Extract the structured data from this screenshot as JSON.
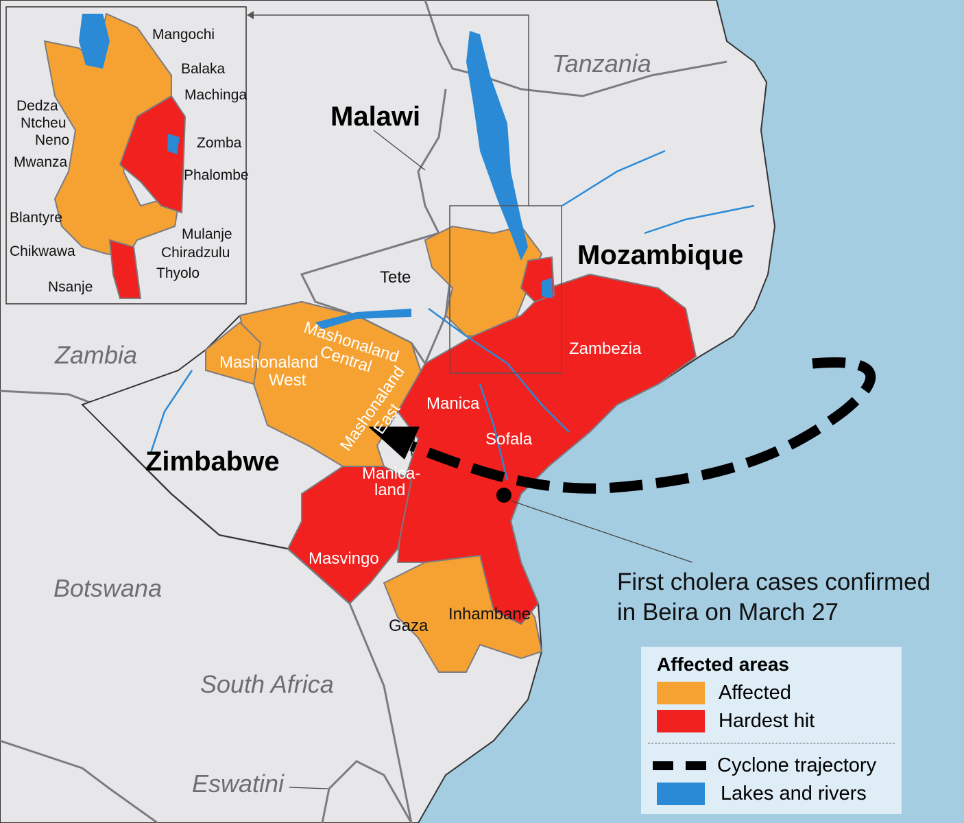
{
  "colors": {
    "sea": "#a5cde2",
    "land": "#e7e7ea",
    "affected": "#f5a233",
    "hardest_hit": "#f0211f",
    "water": "#2a8ad6",
    "border": "#7b7b80"
  },
  "countries": {
    "tanzania": "Tanzania",
    "malawi": "Malawi",
    "mozambique": "Mozambique",
    "zambia": "Zambia",
    "zimbabwe": "Zimbabwe",
    "botswana": "Botswana",
    "south_africa": "South Africa",
    "eswatini": "Eswatini"
  },
  "provinces": {
    "tete": "Tete",
    "zambezia": "Zambezia",
    "manica": "Manica",
    "sofala": "Sofala",
    "gaza": "Gaza",
    "inhambane": "Inhambane",
    "mash_central": "Mashonaland Central",
    "mash_west_1": "Mashonaland",
    "mash_west_2": "West",
    "mash_east": "Mashonaland East",
    "manicaland_1": "Manica-",
    "manicaland_2": "land",
    "masvingo": "Masvingo"
  },
  "inset_districts": [
    "Mangochi",
    "Balaka",
    "Machinga",
    "Dedza",
    "Ntcheu",
    "Neno",
    "Zomba",
    "Mwanza",
    "Phalombe",
    "Blantyre",
    "Mulanje",
    "Chikwawa",
    "Chiradzulu",
    "Thyolo",
    "Nsanje"
  ],
  "annotation": {
    "line1": "First cholera cases confirmed",
    "line2": "in Beira on March 27"
  },
  "legend": {
    "title": "Affected areas",
    "affected": "Affected",
    "hardest_hit": "Hardest hit",
    "cyclone": "Cyclone trajectory",
    "water": "Lakes and rivers"
  }
}
